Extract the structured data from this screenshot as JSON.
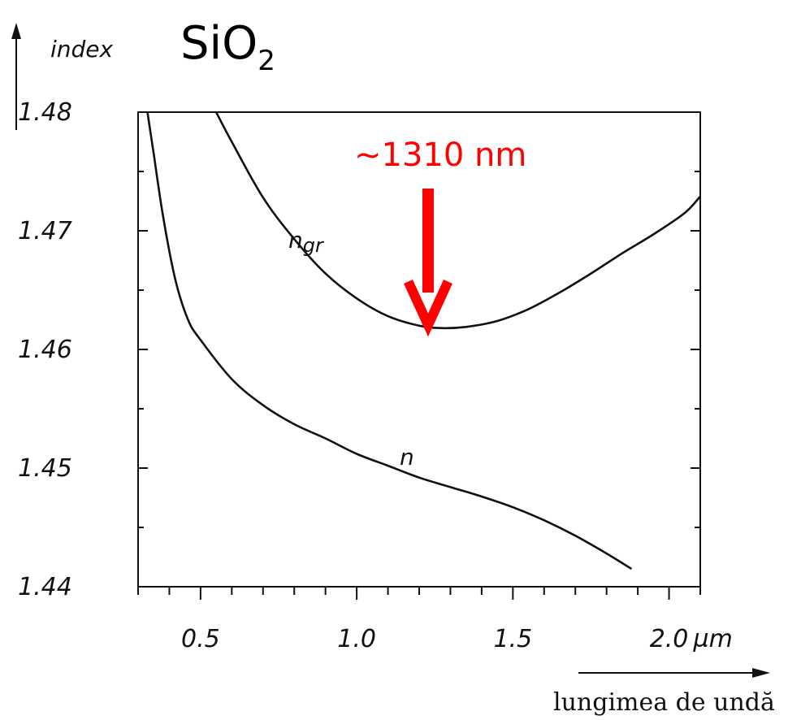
{
  "chart_data": {
    "type": "line",
    "title": "SiO",
    "title_subscript": "2",
    "ylabel": "index",
    "xlabel": "lungimea de undă",
    "x_unit": "µm",
    "xlim": [
      0.3,
      2.1
    ],
    "ylim": [
      1.44,
      1.48
    ],
    "x_ticks": [
      {
        "value": 0.5,
        "label": "0.5"
      },
      {
        "value": 1.0,
        "label": "1.0"
      },
      {
        "value": 1.5,
        "label": "1.5"
      },
      {
        "value": 2.0,
        "label": "2.0"
      }
    ],
    "y_ticks": [
      {
        "value": 1.44,
        "label": "1.44"
      },
      {
        "value": 1.45,
        "label": "1.45"
      },
      {
        "value": 1.46,
        "label": "1.46"
      },
      {
        "value": 1.47,
        "label": "1.47"
      },
      {
        "value": 1.48,
        "label": "1.48"
      }
    ],
    "series": [
      {
        "name": "n_gr",
        "label_main": "n",
        "label_sub": "gr",
        "x": [
          0.55,
          0.6,
          0.7,
          0.8,
          0.9,
          1.0,
          1.1,
          1.2,
          1.27,
          1.35,
          1.45,
          1.55,
          1.65,
          1.75,
          1.85,
          1.95,
          2.05,
          2.1
        ],
        "y": [
          1.48,
          1.4775,
          1.4728,
          1.4693,
          1.4664,
          1.4643,
          1.4628,
          1.462,
          1.4618,
          1.4619,
          1.4624,
          1.4634,
          1.4648,
          1.4664,
          1.4681,
          1.4697,
          1.4715,
          1.4729
        ]
      },
      {
        "name": "n",
        "label_main": "n",
        "label_sub": "",
        "x": [
          0.33,
          0.35,
          0.38,
          0.42,
          0.46,
          0.5,
          0.6,
          0.7,
          0.8,
          0.9,
          1.0,
          1.1,
          1.2,
          1.3,
          1.4,
          1.5,
          1.6,
          1.7,
          1.8,
          1.88
        ],
        "y": [
          1.48,
          1.4765,
          1.4712,
          1.4658,
          1.4625,
          1.4608,
          1.4575,
          1.4553,
          1.4537,
          1.4525,
          1.4512,
          1.4502,
          1.4492,
          1.4484,
          1.4476,
          1.4467,
          1.4456,
          1.4443,
          1.4428,
          1.4415
        ]
      }
    ],
    "annotation": {
      "text": "~1310 nm",
      "color": "#ff0000",
      "x": 1.27,
      "y": 1.4618
    },
    "grid": false
  }
}
